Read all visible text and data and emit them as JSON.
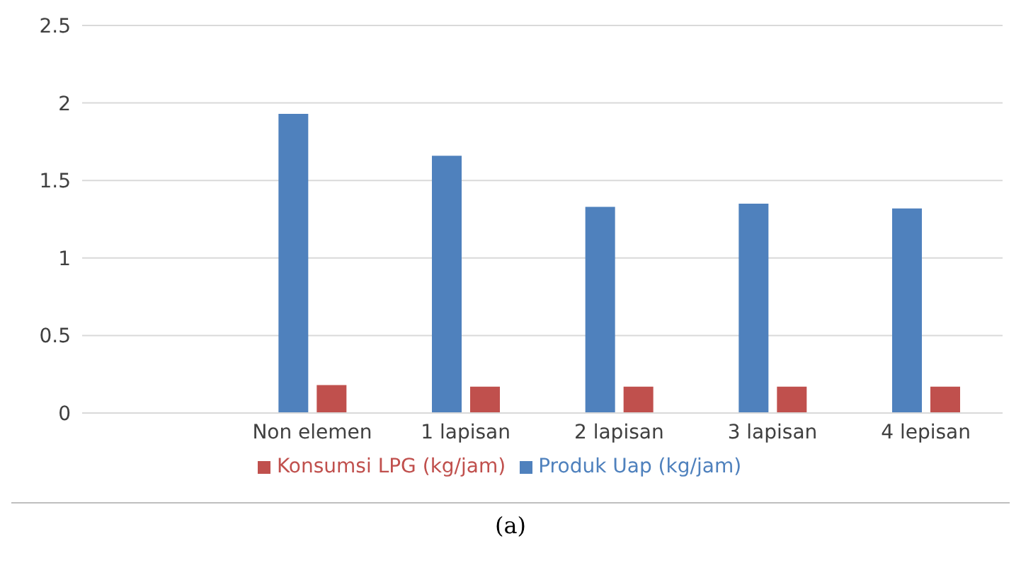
{
  "chart_data": {
    "type": "bar",
    "categories": [
      null,
      "Non elemen",
      "1 lapisan",
      "2 lapisan",
      "3 lapisan",
      "4 lepisan"
    ],
    "series": [
      {
        "name": "Produk Uap (kg/jam)",
        "color": "#4f81bd",
        "values": [
          null,
          1.93,
          1.66,
          1.33,
          1.35,
          1.32
        ]
      },
      {
        "name": "Konsumsi LPG (kg/jam)",
        "color": "#c0504d",
        "values": [
          null,
          0.18,
          0.17,
          0.17,
          0.17,
          0.17
        ]
      }
    ],
    "ylim": [
      0,
      2.5
    ],
    "yticks": [
      0,
      0.5,
      1,
      1.5,
      2,
      2.5
    ],
    "grid": "y",
    "legend": "bottom",
    "annotations": [
      "(a)"
    ]
  }
}
